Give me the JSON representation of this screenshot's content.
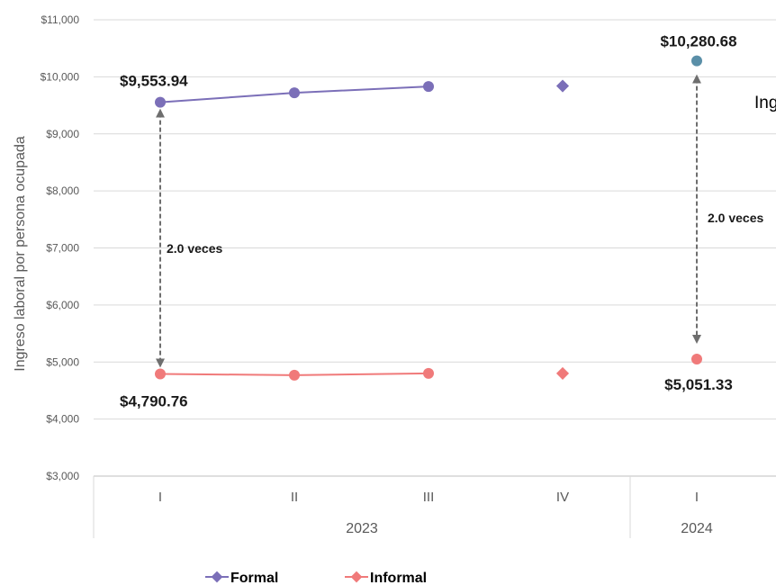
{
  "chart_data": {
    "type": "line",
    "ylabel": "Ingreso laboral por persona ocupada",
    "ylim": [
      3000,
      11000
    ],
    "yticks": [
      "$3,000",
      "$4,000",
      "$5,000",
      "$6,000",
      "$7,000",
      "$8,000",
      "$9,000",
      "$10,000",
      "$11,000"
    ],
    "categories": [
      "I",
      "II",
      "III",
      "IV",
      "I"
    ],
    "year_groups": [
      {
        "label": "2023",
        "span": [
          0,
          3
        ]
      },
      {
        "label": "2024",
        "span": [
          4,
          4
        ]
      }
    ],
    "series": [
      {
        "name": "Formal",
        "color": "#7b6fb8",
        "values": [
          9553.94,
          9720,
          9830,
          9840,
          10280.68
        ]
      },
      {
        "name": "Informal",
        "color": "#f07a7a",
        "values": [
          4790.76,
          4770,
          4800,
          4800,
          5051.33
        ]
      }
    ],
    "data_labels": {
      "formal_first": "$9,553.94",
      "informal_first": "$4,790.76",
      "formal_last": "$10,280.68",
      "informal_last": "$5,051.33"
    },
    "ratio_labels": [
      "2.0 veces",
      "2.0 veces"
    ],
    "cut_off_title": "Ing",
    "last_point_color": "#5a8fa8",
    "grid": true,
    "legend_position": "bottom"
  }
}
